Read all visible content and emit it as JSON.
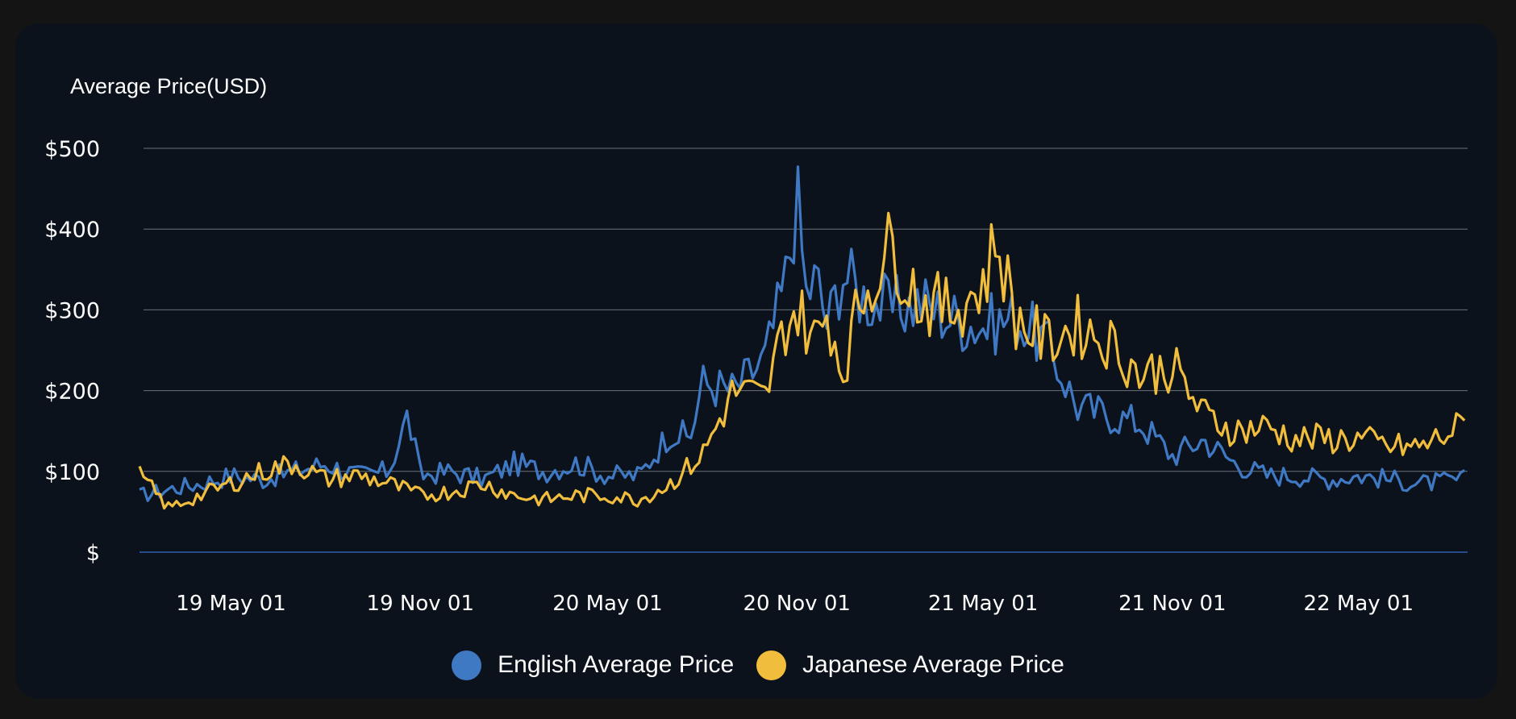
{
  "chart_data": {
    "type": "line",
    "title": "",
    "ylabel": "Average Price(USD)",
    "xlabel": "",
    "y_ticks": [
      0,
      100,
      200,
      300,
      400,
      500
    ],
    "y_tick_labels": [
      "$",
      "$100",
      "$200",
      "$300",
      "$400",
      "$500"
    ],
    "ylim": [
      0,
      500
    ],
    "x_range": [
      "2019-02-01",
      "2022-08-15"
    ],
    "x_ticks": [
      "2019-05-01",
      "2019-11-01",
      "2020-05-01",
      "2020-11-01",
      "2021-05-01",
      "2021-11-01",
      "2022-05-01"
    ],
    "x_tick_labels": [
      "19 May 01",
      "19 Nov 01",
      "20 May 01",
      "20 Nov 01",
      "21 May 01",
      "21 Nov 01",
      "22 May 01"
    ],
    "grid": "horizontal",
    "legend_position": "bottom-center",
    "series": [
      {
        "name": "English Average Price",
        "color": "#3f79c4",
        "x": [
          "2019-02-01",
          "2019-03-01",
          "2019-04-01",
          "2019-05-01",
          "2019-06-01",
          "2019-07-01",
          "2019-08-01",
          "2019-09-01",
          "2019-10-01",
          "2019-10-20",
          "2019-11-01",
          "2019-12-01",
          "2020-01-01",
          "2020-02-01",
          "2020-03-01",
          "2020-04-01",
          "2020-05-01",
          "2020-06-01",
          "2020-07-01",
          "2020-07-20",
          "2020-08-01",
          "2020-09-01",
          "2020-10-01",
          "2020-10-20",
          "2020-11-01",
          "2020-11-10",
          "2020-11-20",
          "2020-12-01",
          "2020-12-15",
          "2021-01-01",
          "2021-02-01",
          "2021-03-01",
          "2021-04-01",
          "2021-05-01",
          "2021-06-01",
          "2021-07-01",
          "2021-08-01",
          "2021-09-01",
          "2021-10-01",
          "2021-11-01",
          "2021-12-01",
          "2022-01-01",
          "2022-02-01",
          "2022-03-01",
          "2022-04-01",
          "2022-05-01",
          "2022-06-01",
          "2022-07-01",
          "2022-08-15"
        ],
        "values": [
          70,
          78,
          85,
          95,
          90,
          100,
          110,
          95,
          100,
          170,
          95,
          100,
          90,
          110,
          100,
          110,
          95,
          95,
          150,
          140,
          210,
          200,
          240,
          330,
          440,
          320,
          340,
          280,
          350,
          320,
          300,
          310,
          290,
          280,
          290,
          260,
          180,
          170,
          160,
          120,
          140,
          110,
          95,
          95,
          90,
          95,
          90,
          85,
          90
        ]
      },
      {
        "name": "Japanese Average Price",
        "color": "#f1bd3c",
        "x": [
          "2019-02-01",
          "2019-03-01",
          "2019-04-01",
          "2019-05-01",
          "2019-06-01",
          "2019-07-01",
          "2019-08-01",
          "2019-09-01",
          "2019-10-01",
          "2019-11-01",
          "2019-12-01",
          "2020-01-01",
          "2020-02-01",
          "2020-03-01",
          "2020-04-01",
          "2020-05-01",
          "2020-06-01",
          "2020-07-01",
          "2020-08-01",
          "2020-09-01",
          "2020-10-01",
          "2020-10-20",
          "2020-11-01",
          "2020-11-20",
          "2020-12-01",
          "2020-12-15",
          "2021-01-01",
          "2021-02-01",
          "2021-03-01",
          "2021-04-01",
          "2021-05-01",
          "2021-05-15",
          "2021-06-01",
          "2021-07-01",
          "2021-08-01",
          "2021-09-01",
          "2021-10-01",
          "2021-11-01",
          "2021-12-01",
          "2022-01-01",
          "2022-02-01",
          "2022-03-01",
          "2022-04-01",
          "2022-05-01",
          "2022-06-01",
          "2022-07-01",
          "2022-08-15"
        ],
        "values": [
          95,
          55,
          70,
          85,
          100,
          110,
          90,
          95,
          85,
          70,
          75,
          85,
          70,
          65,
          70,
          70,
          65,
          85,
          120,
          200,
          190,
          280,
          300,
          260,
          300,
          220,
          310,
          380,
          310,
          300,
          330,
          390,
          290,
          260,
          280,
          260,
          220,
          230,
          170,
          150,
          155,
          140,
          140,
          140,
          130,
          130,
          160
        ]
      }
    ]
  }
}
